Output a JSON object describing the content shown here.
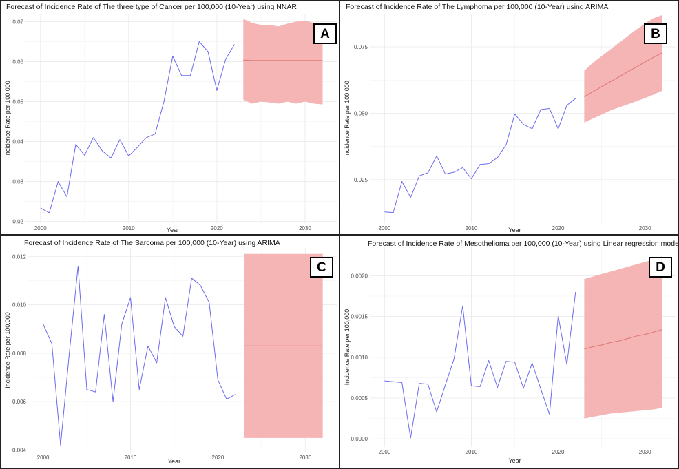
{
  "chart_data": [
    {
      "id": "A",
      "type": "line",
      "title": "Forecast of Incidence Rate of The three type of Cancer per 100,000 (10-Year) using NNAR",
      "badge": "A",
      "xlabel": "Year",
      "ylabel": "Incidence Rate per 100,000",
      "xlim": [
        1998.3,
        2033.6
      ],
      "ylim": [
        0.0196,
        0.0718
      ],
      "x_ticks": [
        2000,
        2010,
        2020,
        2030
      ],
      "y_ticks": [
        0.02,
        0.03,
        0.04,
        0.05,
        0.06,
        0.07
      ],
      "y_tick_labels": [
        "0.02",
        "0.03",
        "0.04",
        "0.05",
        "0.06",
        "0.07"
      ],
      "grid": true,
      "series": [
        {
          "x": [
            2000,
            2001,
            2002,
            2003,
            2004,
            2005,
            2006,
            2007,
            2008,
            2009,
            2010,
            2011,
            2012,
            2013,
            2014,
            2015,
            2016,
            2017,
            2018,
            2019,
            2020,
            2021,
            2022
          ],
          "values": [
            0.0234,
            0.0222,
            0.03,
            0.0262,
            0.0393,
            0.0366,
            0.041,
            0.0377,
            0.0359,
            0.0405,
            0.0364,
            0.0386,
            0.041,
            0.0419,
            0.05,
            0.0614,
            0.0565,
            0.0565,
            0.065,
            0.0625,
            0.0528,
            0.0606,
            0.0643
          ]
        }
      ],
      "forecast": {
        "x": [
          2023,
          2024,
          2025,
          2026,
          2027,
          2028,
          2029,
          2030,
          2031,
          2032
        ],
        "mean": [
          0.0604,
          0.0603,
          0.0603,
          0.0603,
          0.0603,
          0.0603,
          0.0603,
          0.0603,
          0.0603,
          0.0603
        ],
        "upper": [
          0.0707,
          0.0697,
          0.0692,
          0.0692,
          0.0688,
          0.0695,
          0.07,
          0.0702,
          0.0697,
          0.0697
        ],
        "lower": [
          0.0505,
          0.0495,
          0.05,
          0.0498,
          0.0495,
          0.05,
          0.0495,
          0.05,
          0.0495,
          0.0493
        ]
      }
    },
    {
      "id": "B",
      "type": "line",
      "title": "Forecast of Incidence Rate of The Lymphoma per 100,000 (10-Year) using ARIMA",
      "badge": "B",
      "xlabel": "Year",
      "ylabel": "Incidence Rate per 100,000",
      "xlim": [
        1998.3,
        2033.6
      ],
      "ylim": [
        0.0086,
        0.0872
      ],
      "x_ticks": [
        2000,
        2010,
        2020,
        2030
      ],
      "y_ticks": [
        0.025,
        0.05,
        0.075
      ],
      "y_tick_labels": [
        "0.025",
        "0.050",
        "0.075"
      ],
      "grid": true,
      "series": [
        {
          "x": [
            2000,
            2001,
            2002,
            2003,
            2004,
            2005,
            2006,
            2007,
            2008,
            2009,
            2010,
            2011,
            2012,
            2013,
            2014,
            2015,
            2016,
            2017,
            2018,
            2019,
            2020,
            2021,
            2022
          ],
          "values": [
            0.0128,
            0.0126,
            0.0243,
            0.0183,
            0.0264,
            0.0276,
            0.0339,
            0.0271,
            0.0278,
            0.0295,
            0.0253,
            0.0307,
            0.031,
            0.0333,
            0.0381,
            0.0497,
            0.0458,
            0.0442,
            0.0514,
            0.0518,
            0.0441,
            0.053,
            0.0556
          ]
        }
      ],
      "forecast": {
        "x": [
          2023,
          2024,
          2025,
          2026,
          2027,
          2028,
          2029,
          2030,
          2031,
          2032
        ],
        "mean": [
          0.0562,
          0.0581,
          0.06,
          0.0619,
          0.0637,
          0.0656,
          0.0674,
          0.0693,
          0.0711,
          0.0728
        ],
        "upper": [
          0.066,
          0.069,
          0.0715,
          0.074,
          0.0765,
          0.079,
          0.0815,
          0.0838,
          0.0858,
          0.087
        ],
        "lower": [
          0.0465,
          0.048,
          0.0495,
          0.051,
          0.0522,
          0.0533,
          0.0545,
          0.0557,
          0.057,
          0.0585
        ]
      }
    },
    {
      "id": "C",
      "type": "line",
      "title": "Forecast of Incidence Rate of The Sarcoma per 100,000 (10-Year) using ARIMA",
      "badge": "C",
      "xlabel": "Year",
      "ylabel": "Incidence Rate per 100,000",
      "xlim": [
        1998.3,
        2033.6
      ],
      "ylim": [
        0.0039,
        0.01235
      ],
      "x_ticks": [
        2000,
        2010,
        2020,
        2030
      ],
      "y_ticks": [
        0.004,
        0.006,
        0.008,
        0.01,
        0.012
      ],
      "y_tick_labels": [
        "0.004",
        "0.006",
        "0.008",
        "0.010",
        "0.012"
      ],
      "grid": true,
      "series": [
        {
          "x": [
            2000,
            2001,
            2002,
            2003,
            2004,
            2005,
            2006,
            2007,
            2008,
            2009,
            2010,
            2011,
            2012,
            2013,
            2014,
            2015,
            2016,
            2017,
            2018,
            2019,
            2020,
            2021,
            2022
          ],
          "values": [
            0.0092,
            0.0084,
            0.0042,
            0.008,
            0.0116,
            0.0065,
            0.0064,
            0.0096,
            0.006,
            0.0092,
            0.0103,
            0.0065,
            0.0083,
            0.0076,
            0.0103,
            0.0091,
            0.0087,
            0.0111,
            0.0108,
            0.0101,
            0.0069,
            0.0061,
            0.0063
          ]
        }
      ],
      "forecast": {
        "x": [
          2023,
          2024,
          2025,
          2026,
          2027,
          2028,
          2029,
          2030,
          2031,
          2032
        ],
        "mean": [
          0.0083,
          0.0083,
          0.0083,
          0.0083,
          0.0083,
          0.0083,
          0.0083,
          0.0083,
          0.0083,
          0.0083
        ],
        "upper": [
          0.0121,
          0.0121,
          0.0121,
          0.0121,
          0.0121,
          0.0121,
          0.0121,
          0.0121,
          0.0121,
          0.0121
        ],
        "lower": [
          0.0045,
          0.0045,
          0.0045,
          0.0045,
          0.0045,
          0.0045,
          0.0045,
          0.0045,
          0.0045,
          0.0045
        ]
      }
    },
    {
      "id": "D",
      "type": "line",
      "title": "Forecast of Incidence Rate of Mesothelioma per 100,000 (10-Year) using Linear regression mode",
      "badge": "D",
      "xlabel": "Year",
      "ylabel": "Incidence Rate per 100,000",
      "xlim": [
        1998.3,
        2033.6
      ],
      "ylim": [
        -0.0001,
        0.00235
      ],
      "x_ticks": [
        2000,
        2010,
        2020,
        2030
      ],
      "y_ticks": [
        0,
        0.0005,
        0.001,
        0.0015,
        0.002
      ],
      "y_tick_labels": [
        "0.0000",
        "0.0005",
        "0.0010",
        "0.0015",
        "0.0020"
      ],
      "grid": true,
      "series": [
        {
          "x": [
            2000,
            2001,
            2002,
            2003,
            2004,
            2005,
            2006,
            2007,
            2008,
            2009,
            2010,
            2011,
            2012,
            2013,
            2014,
            2015,
            2016,
            2017,
            2018,
            2019,
            2020,
            2021,
            2022
          ],
          "values": [
            0.00071,
            0.0007,
            0.00069,
            1e-05,
            0.00068,
            0.00067,
            0.00033,
            0.00066,
            0.00098,
            0.00163,
            0.00065,
            0.00064,
            0.00096,
            0.00063,
            0.00095,
            0.00094,
            0.00062,
            0.00093,
            0.00061,
            0.0003,
            0.00151,
            0.00091,
            0.0018
          ]
        }
      ],
      "forecast": {
        "x": [
          2023,
          2024,
          2025,
          2026,
          2027,
          2028,
          2029,
          2030,
          2031,
          2032
        ],
        "mean": [
          0.0011,
          0.00113,
          0.00115,
          0.00118,
          0.0012,
          0.00123,
          0.00126,
          0.00128,
          0.00131,
          0.00134
        ],
        "upper": [
          0.00196,
          0.00199,
          0.00202,
          0.00205,
          0.00208,
          0.00211,
          0.00214,
          0.00217,
          0.0022,
          0.00224
        ],
        "lower": [
          0.00025,
          0.00027,
          0.00029,
          0.00031,
          0.00032,
          0.00033,
          0.00034,
          0.00035,
          0.00036,
          0.00038
        ]
      }
    }
  ],
  "colors": {
    "history_line": "#6a6af0",
    "forecast_mean": "#e07a7a",
    "forecast_band": "#f5b5b5",
    "grid": "#ebebeb"
  }
}
